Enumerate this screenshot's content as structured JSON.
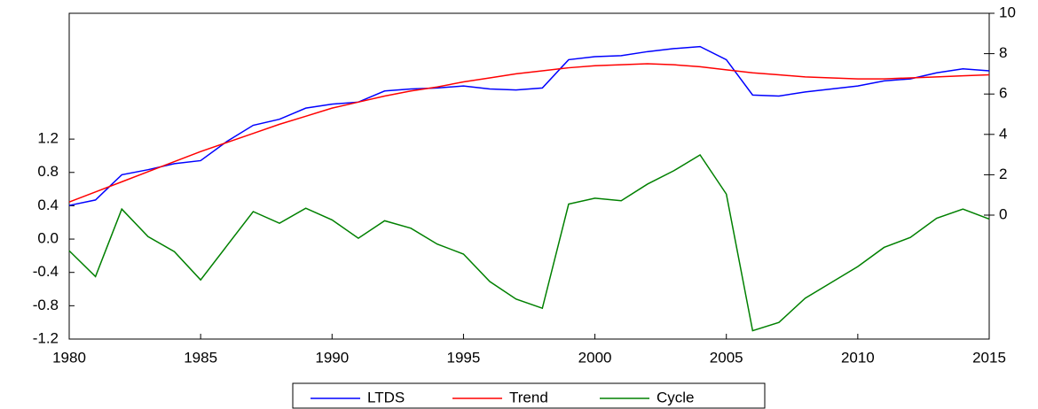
{
  "chart_data": {
    "type": "line",
    "x": [
      1980,
      1981,
      1982,
      1983,
      1984,
      1985,
      1986,
      1987,
      1988,
      1989,
      1990,
      1991,
      1992,
      1993,
      1994,
      1995,
      1996,
      1997,
      1998,
      1999,
      2000,
      2001,
      2002,
      2003,
      2004,
      2005,
      2006,
      2007,
      2008,
      2009,
      2010,
      2011,
      2012,
      2013,
      2014,
      2015
    ],
    "xlim": [
      1980,
      2015
    ],
    "xticks": [
      1980,
      1985,
      1990,
      1995,
      2000,
      2005,
      2010,
      2015
    ],
    "ylim": [
      -1.2,
      2.71
    ],
    "yticks": [
      {
        "value": -1.2,
        "label": "-1.2"
      },
      {
        "value": -0.8,
        "label": "-0.8"
      },
      {
        "value": -0.4,
        "label": "-0.4"
      },
      {
        "value": 0,
        "label": "0.0"
      },
      {
        "value": 0.4,
        "label": "0.4"
      },
      {
        "value": 0.8,
        "label": "0.8"
      },
      {
        "value": 1.2,
        "label": "1.2"
      }
    ],
    "y2lim": [
      -6.14,
      10
    ],
    "y2ticks": [
      0,
      2,
      4,
      6,
      8,
      10
    ],
    "grid": false,
    "legend": "bottom",
    "series": [
      {
        "name": "LTDS",
        "color": "#0000ff",
        "axis": "y2",
        "values": [
          0.48,
          0.75,
          2.0,
          2.25,
          2.55,
          2.7,
          3.65,
          4.45,
          4.75,
          5.3,
          5.5,
          5.6,
          6.15,
          6.25,
          6.3,
          6.4,
          6.25,
          6.2,
          6.3,
          7.7,
          7.85,
          7.9,
          8.1,
          8.25,
          8.35,
          7.7,
          5.95,
          5.9,
          6.1,
          6.25,
          6.4,
          6.65,
          6.75,
          7.05,
          7.25,
          7.15
        ]
      },
      {
        "name": "Trend",
        "color": "#ff0000",
        "axis": "y2",
        "values": [
          0.65,
          1.15,
          1.65,
          2.15,
          2.65,
          3.15,
          3.6,
          4.05,
          4.5,
          4.9,
          5.3,
          5.6,
          5.9,
          6.15,
          6.35,
          6.6,
          6.8,
          7.0,
          7.15,
          7.3,
          7.4,
          7.45,
          7.5,
          7.45,
          7.35,
          7.2,
          7.05,
          6.95,
          6.85,
          6.8,
          6.75,
          6.75,
          6.8,
          6.85,
          6.9,
          6.95
        ]
      },
      {
        "name": "Cycle",
        "color": "#008000",
        "values": [
          -0.14,
          -0.45,
          0.36,
          0.03,
          -0.15,
          -0.49,
          -0.08,
          0.33,
          0.19,
          0.37,
          0.23,
          0.01,
          0.22,
          0.13,
          -0.06,
          -0.18,
          -0.51,
          -0.72,
          -0.83,
          0.42,
          0.49,
          0.46,
          0.66,
          0.82,
          1.01,
          0.54,
          -1.1,
          -1.0,
          -0.71,
          -0.52,
          -0.33,
          -0.1,
          0.02,
          0.25,
          0.36,
          0.24
        ]
      }
    ]
  }
}
